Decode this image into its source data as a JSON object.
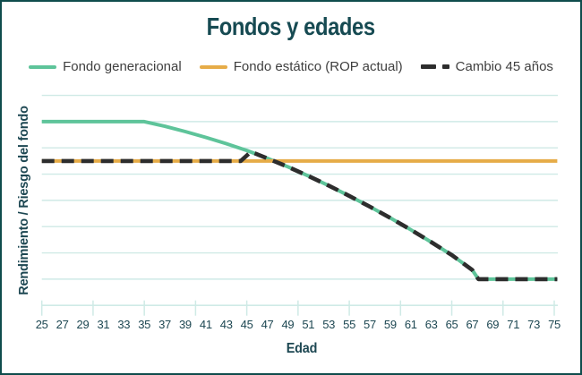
{
  "header": {
    "title": "Fondos y edades"
  },
  "legend": [
    {
      "id": "fondo-generacional",
      "label": "Fondo generacional",
      "color": "#5ec49a",
      "style": "solid"
    },
    {
      "id": "fondo-estatico",
      "label": "Fondo estático (ROP actual)",
      "color": "#e6ac48",
      "style": "solid"
    },
    {
      "id": "cambio-45",
      "label": "Cambio 45 años",
      "color": "#2d2d2d",
      "style": "dashed"
    }
  ],
  "axes": {
    "x_label": "Edad",
    "y_label": "Rendimiento / Riesgo del fondo"
  },
  "colors": {
    "accent_dark_teal": "#164a52",
    "grid": "#cfeae6",
    "tick_label": "#1d4752",
    "legend_text": "#3f3f3f",
    "frame_border": "#0f4c4c",
    "background": "#ffffff"
  },
  "chart_data": {
    "type": "line",
    "title": "Fondos y edades",
    "xlabel": "Edad",
    "ylabel": "Rendimiento / Riesgo del fondo",
    "xlim": [
      25,
      75
    ],
    "ylim": [
      0,
      8.5
    ],
    "y_axis_numeric_labels": false,
    "grid": "horizontal-only",
    "gridline_levels": [
      1,
      2,
      3,
      4,
      5,
      6,
      7,
      8
    ],
    "x_tick_values": [
      25,
      27,
      29,
      31,
      33,
      35,
      37,
      39,
      41,
      43,
      45,
      47,
      49,
      51,
      53,
      55,
      57,
      59,
      61,
      63,
      65,
      67,
      69,
      71,
      73,
      75
    ],
    "x_major_ticks": [
      25,
      30,
      35,
      40,
      45,
      50,
      55,
      60,
      65,
      70,
      75
    ],
    "legend_position": "top",
    "series": [
      {
        "id": "fondo-generacional",
        "name": "Fondo generacional",
        "color": "#5ec49a",
        "width": 4,
        "dash": null,
        "points": [
          [
            25,
            7
          ],
          [
            27,
            7
          ],
          [
            29,
            7
          ],
          [
            31,
            7
          ],
          [
            33,
            7
          ],
          [
            35,
            7
          ],
          [
            37,
            6.82
          ],
          [
            39,
            6.62
          ],
          [
            41,
            6.4
          ],
          [
            43,
            6.16
          ],
          [
            45,
            5.9
          ],
          [
            47,
            5.6
          ],
          [
            49,
            5.28
          ],
          [
            51,
            4.93
          ],
          [
            53,
            4.56
          ],
          [
            55,
            4.17
          ],
          [
            57,
            3.76
          ],
          [
            59,
            3.33
          ],
          [
            61,
            2.88
          ],
          [
            63,
            2.41
          ],
          [
            65,
            1.92
          ],
          [
            67,
            1.35
          ],
          [
            67.6,
            1.0
          ],
          [
            69,
            1.0
          ],
          [
            71,
            1.0
          ],
          [
            73,
            1.0
          ],
          [
            75.3,
            1.0
          ]
        ]
      },
      {
        "id": "fondo-estatico",
        "name": "Fondo estático (ROP actual)",
        "color": "#e6ac48",
        "width": 4,
        "dash": null,
        "points": [
          [
            25,
            5.5
          ],
          [
            75.3,
            5.5
          ]
        ]
      },
      {
        "id": "cambio-45",
        "name": "Cambio 45 años",
        "color": "#2d2d2d",
        "width": 4.6,
        "dash": [
          14,
          8
        ],
        "points": [
          [
            25,
            5.5
          ],
          [
            44.4,
            5.5
          ],
          [
            45.4,
            5.85
          ],
          [
            47,
            5.6
          ],
          [
            49,
            5.28
          ],
          [
            51,
            4.93
          ],
          [
            53,
            4.56
          ],
          [
            55,
            4.17
          ],
          [
            57,
            3.76
          ],
          [
            59,
            3.33
          ],
          [
            61,
            2.88
          ],
          [
            63,
            2.41
          ],
          [
            65,
            1.92
          ],
          [
            67,
            1.35
          ],
          [
            67.6,
            1.0
          ],
          [
            69,
            1.0
          ],
          [
            71,
            1.0
          ],
          [
            73,
            1.0
          ],
          [
            75.3,
            1.0
          ]
        ]
      }
    ]
  }
}
